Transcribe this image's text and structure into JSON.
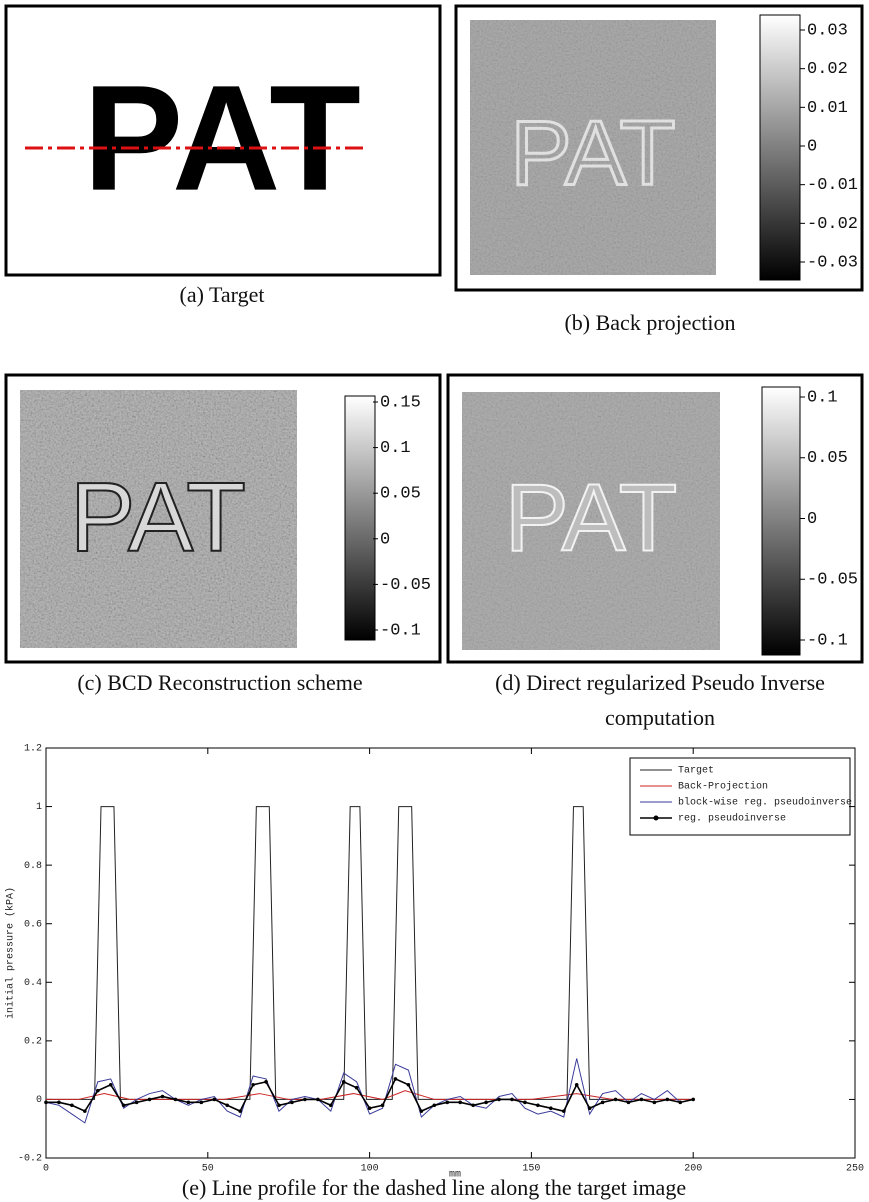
{
  "panels": [
    {
      "caption": [
        "(a) Target"
      ],
      "text": "PAT"
    },
    {
      "caption": [
        "(b) Back projection"
      ],
      "text": "PAT",
      "colorbar": [
        "0.03",
        "0.02",
        "0.01",
        "0",
        "-0.01",
        "-0.02",
        "-0.03"
      ]
    },
    {
      "caption": [
        "(c) BCD Reconstruction scheme"
      ],
      "text": "PAT",
      "colorbar": [
        "0.15",
        "0.1",
        "0.05",
        "0",
        "-0.05",
        "-0.1"
      ]
    },
    {
      "caption": [
        "(d) Direct regularized Pseudo Inverse",
        "computation"
      ],
      "text": "PAT",
      "colorbar": [
        "0.1",
        "0.05",
        "0",
        "-0.05",
        "-0.1"
      ]
    }
  ],
  "chart_data": {
    "type": "line",
    "caption": "(e) Line profile for the dashed line along the target image",
    "x_label": "mm",
    "y_label": "initial pressure (kPA)",
    "xlim": [
      0,
      250
    ],
    "xticks": [
      0,
      50,
      100,
      150,
      200,
      250
    ],
    "ylim": [
      -0.2,
      1.2
    ],
    "yticks": [
      -0.2,
      0,
      0.2,
      0.4,
      0.6,
      0.8,
      1,
      1.2
    ],
    "legend": "upper right",
    "series": [
      {
        "name": "Target",
        "color": "#222222",
        "x": [
          0,
          15,
          17,
          21,
          23,
          63,
          65,
          69,
          71,
          92,
          94,
          97,
          99,
          107,
          109,
          113,
          115,
          161,
          163,
          166,
          168,
          200
        ],
        "values": [
          0,
          0,
          1,
          1,
          0,
          0,
          1,
          1,
          0,
          0,
          1,
          1,
          0,
          0,
          1,
          1,
          0,
          0,
          1,
          1,
          0,
          0
        ]
      },
      {
        "name": "Back-Projection",
        "color": "#cc2222",
        "x": [
          0,
          10,
          18,
          26,
          40,
          55,
          66,
          75,
          85,
          95,
          104,
          111,
          120,
          135,
          150,
          164,
          175,
          190,
          200
        ],
        "values": [
          0,
          0,
          0.02,
          0,
          0,
          0,
          0.02,
          0,
          0,
          0.02,
          0,
          0.03,
          0,
          0,
          0,
          0.02,
          0,
          0,
          0
        ]
      },
      {
        "name": "block-wise reg. pseudoinverse",
        "color": "#3a3a9a",
        "x": [
          0,
          4,
          8,
          12,
          16,
          20,
          24,
          28,
          32,
          36,
          40,
          44,
          48,
          52,
          56,
          60,
          64,
          68,
          72,
          76,
          80,
          84,
          88,
          92,
          96,
          100,
          104,
          108,
          112,
          116,
          120,
          124,
          128,
          132,
          136,
          140,
          144,
          148,
          152,
          156,
          160,
          164,
          168,
          172,
          176,
          180,
          184,
          188,
          192,
          196,
          200
        ],
        "values": [
          -0.01,
          -0.02,
          -0.05,
          -0.08,
          0.06,
          0.07,
          -0.03,
          0,
          0.02,
          0.03,
          0,
          -0.02,
          0,
          0.01,
          -0.04,
          -0.06,
          0.08,
          0.07,
          -0.04,
          0,
          0.01,
          0,
          -0.04,
          0.09,
          0.06,
          -0.05,
          -0.03,
          0.12,
          0.1,
          -0.06,
          -0.02,
          0,
          0.01,
          -0.02,
          -0.03,
          0.01,
          0.02,
          -0.03,
          -0.05,
          -0.04,
          -0.06,
          0.14,
          -0.05,
          0.02,
          0.03,
          -0.01,
          0.02,
          0,
          0.03,
          -0.01,
          0
        ]
      },
      {
        "name": "reg. pseudoinverse",
        "color": "#000000",
        "marker": "dot",
        "x": [
          0,
          4,
          8,
          12,
          16,
          20,
          24,
          28,
          32,
          36,
          40,
          44,
          48,
          52,
          56,
          60,
          64,
          68,
          72,
          76,
          80,
          84,
          88,
          92,
          96,
          100,
          104,
          108,
          112,
          116,
          120,
          124,
          128,
          132,
          136,
          140,
          144,
          148,
          152,
          156,
          160,
          164,
          168,
          172,
          176,
          180,
          184,
          188,
          192,
          196,
          200
        ],
        "values": [
          -0.01,
          -0.01,
          -0.02,
          -0.04,
          0.03,
          0.05,
          -0.02,
          -0.01,
          0,
          0.01,
          0,
          -0.01,
          -0.01,
          0,
          -0.02,
          -0.04,
          0.05,
          0.06,
          -0.02,
          -0.01,
          0,
          0,
          -0.02,
          0.06,
          0.04,
          -0.03,
          -0.02,
          0.07,
          0.05,
          -0.04,
          -0.02,
          -0.01,
          -0.01,
          -0.02,
          -0.01,
          0,
          0,
          -0.01,
          -0.02,
          -0.03,
          -0.04,
          0.05,
          -0.03,
          -0.01,
          0,
          -0.01,
          0,
          -0.01,
          0,
          -0.01,
          0
        ]
      }
    ]
  }
}
